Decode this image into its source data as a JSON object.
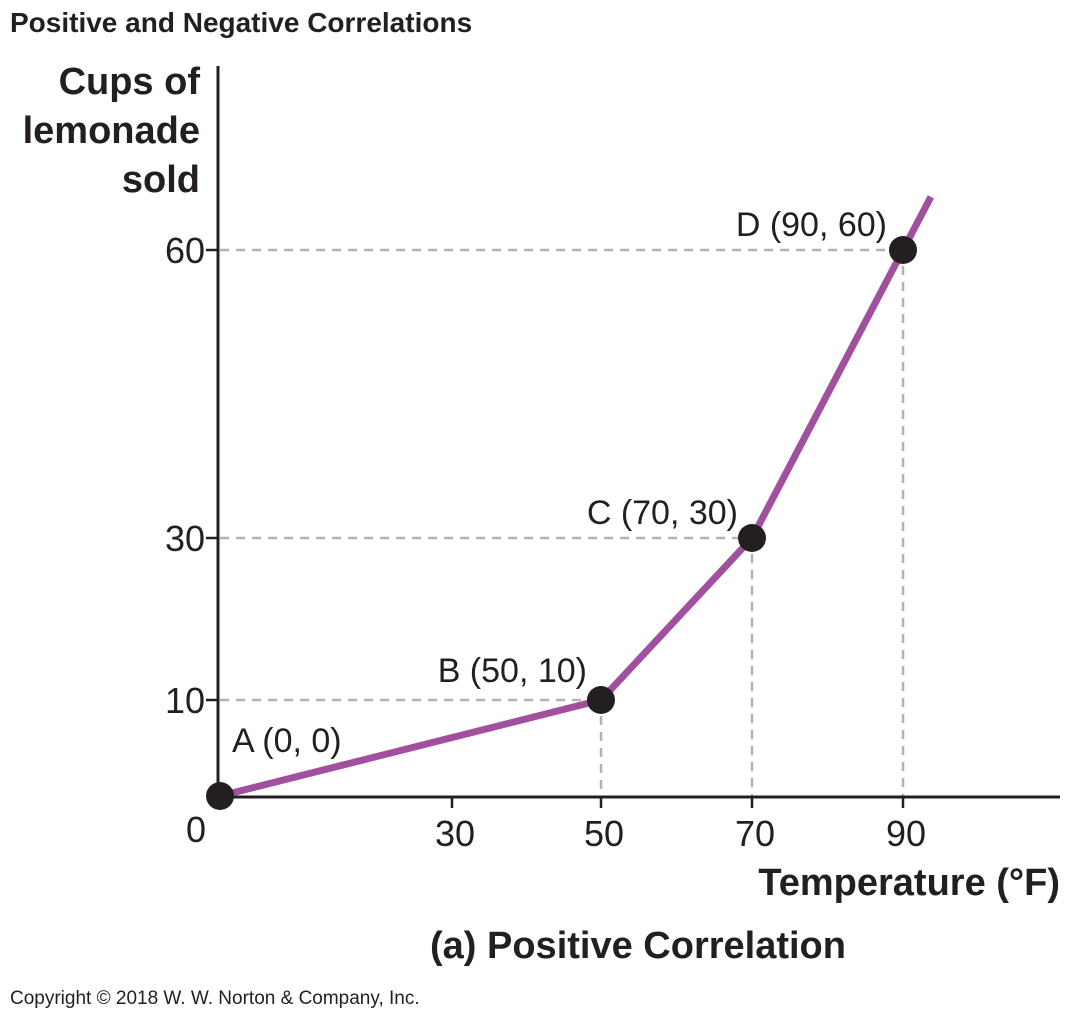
{
  "header": {
    "title": "Positive and Negative Correlations"
  },
  "footer": {
    "copyright": "Copyright © 2018 W. W. Norton & Company, Inc."
  },
  "chart_data": {
    "type": "line",
    "title": "(a) Positive Correlation",
    "xlabel": "Temperature (°F)",
    "ylabel_lines": [
      "Cups of",
      "lemonade",
      "sold"
    ],
    "x_ticks": [
      30,
      50,
      70,
      90
    ],
    "x_tick_labels": [
      "30",
      "50",
      "70",
      "90"
    ],
    "y_ticks": [
      10,
      30,
      60
    ],
    "y_tick_labels": [
      "10",
      "30",
      "60"
    ],
    "origin_label": "0",
    "grid": false,
    "reference_lines": "dashed gray lines from each point to both axes",
    "series": [
      {
        "color": "#a0509e",
        "points": [
          {
            "x": 0,
            "y": 0,
            "label": "A (0, 0)"
          },
          {
            "x": 50,
            "y": 10,
            "label": "B (50, 10)"
          },
          {
            "x": 70,
            "y": 30,
            "label": "C (70, 30)"
          },
          {
            "x": 90,
            "y": 60,
            "label": "D (90, 60)"
          }
        ],
        "extends_past_last_point": true
      }
    ],
    "marker_color": "#231f20",
    "dash_color": "#b3b3b3"
  }
}
